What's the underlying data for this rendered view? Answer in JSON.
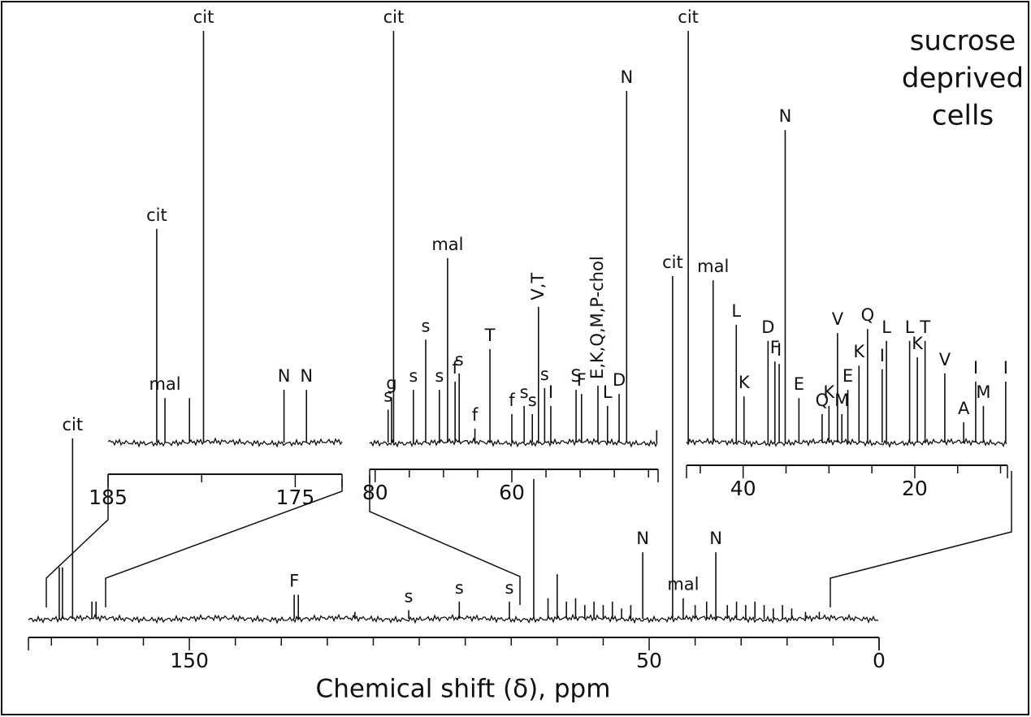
{
  "title_lines": [
    "sucrose",
    "deprived",
    "cells"
  ],
  "chart_data": [
    {
      "type": "spectrum",
      "xlabel": "Chemical shift (δ), ppm",
      "xlim": [
        185,
        0
      ],
      "ylim": [
        0,
        100
      ],
      "xticks": [
        150,
        50,
        0
      ],
      "xminorticks": [
        180,
        170,
        160,
        140,
        130,
        120,
        110,
        100,
        90,
        80,
        70,
        60,
        40,
        30,
        20,
        10
      ],
      "x": [
        178.3,
        177.6,
        175.4,
        171.2,
        170.3,
        127.2,
        126.3,
        114,
        102.3,
        91.3,
        80.4,
        75.1,
        72,
        70,
        68,
        66,
        64,
        62,
        60,
        58,
        56,
        54,
        51.4,
        44.9,
        42.6,
        40,
        37.5,
        35.5,
        33,
        31,
        29,
        27,
        25,
        23,
        21,
        19,
        16,
        13
      ],
      "values": [
        15,
        15,
        52.6,
        5,
        5,
        7,
        7,
        2,
        2.5,
        5,
        5,
        40.8,
        6,
        13,
        5,
        6,
        4,
        5,
        4,
        5,
        3,
        4,
        19.4,
        100,
        6,
        4,
        5,
        19.4,
        4,
        5,
        4,
        5,
        4,
        3,
        4,
        3,
        2,
        2
      ],
      "labels": [
        null,
        null,
        "cit",
        null,
        null,
        "F",
        null,
        null,
        "s",
        "s",
        "s",
        null,
        null,
        null,
        null,
        null,
        null,
        null,
        null,
        null,
        null,
        null,
        "N",
        "cit",
        "mal",
        null,
        null,
        "N",
        null,
        null,
        null,
        null,
        null,
        null,
        null,
        null,
        null,
        null
      ],
      "color": "#111111"
    },
    {
      "type": "spectrum",
      "xlim": [
        185,
        172.5
      ],
      "ylim": [
        0,
        100
      ],
      "xticks": [
        185,
        175
      ],
      "xminorticks": [
        180
      ],
      "x": [
        182.4,
        181.96,
        180.65,
        179.9,
        175.6,
        174.4
      ],
      "values": [
        51.9,
        10.8,
        10.8,
        100,
        12.8,
        12.8
      ],
      "labels": [
        "cit",
        "mal",
        null,
        "cit",
        "N",
        "N"
      ],
      "color": "#111111"
    },
    {
      "type": "spectrum",
      "xlim": [
        80.8,
        38.6
      ],
      "ylim": [
        0,
        100
      ],
      "xticks": [
        80,
        60
      ],
      "xminorticks": [
        75,
        70,
        65,
        55,
        50,
        45,
        40
      ],
      "x": [
        78.1,
        77.6,
        77.3,
        74.4,
        72.6,
        70.6,
        69.4,
        68.3,
        67.7,
        65.4,
        63.2,
        60,
        58.2,
        57.0,
        56.1,
        55.2,
        54.3,
        50.6,
        49.8,
        47.4,
        46.0,
        44.3,
        43.2,
        38.8
      ],
      "values": [
        8,
        11,
        100,
        12.8,
        25,
        12.8,
        44.8,
        14.8,
        16.8,
        3.4,
        22.7,
        6.9,
        8.9,
        6.9,
        33,
        13.2,
        8.9,
        12.8,
        11.8,
        13.8,
        8.9,
        11.8,
        85.4,
        3
      ],
      "labels": [
        "s",
        "g",
        "cit",
        "s",
        "s",
        "s",
        "mal",
        "f",
        "s",
        "f",
        "T",
        "f",
        "s",
        "s",
        "V,T",
        "s",
        "I",
        "S",
        "F",
        "E,K,Q,M,P-chol",
        "L",
        "D",
        "N",
        null
      ],
      "color": "#111111"
    },
    {
      "type": "spectrum",
      "xlim": [
        46.6,
        9.2
      ],
      "ylim": [
        0,
        100
      ],
      "xticks": [
        40,
        20
      ],
      "xminorticks": [
        45,
        35,
        30,
        25,
        15,
        10
      ],
      "x": [
        46.4,
        43.5,
        40.8,
        39.9,
        37.1,
        36.3,
        35.8,
        35.1,
        33.5,
        30.8,
        30,
        29,
        28.5,
        27.8,
        26.5,
        25.5,
        23.8,
        23.3,
        20.6,
        19.7,
        18.8,
        16.5,
        14.3,
        12.9,
        12,
        9.4
      ],
      "values": [
        100,
        39.4,
        28.6,
        11.2,
        24.7,
        19.7,
        19.1,
        75.9,
        10.8,
        6.9,
        8.9,
        26.6,
        6.9,
        12.8,
        18.7,
        27.6,
        17.8,
        24.7,
        24.7,
        20.7,
        24.7,
        16.8,
        4.9,
        14.8,
        8.9,
        14.8
      ],
      "labels": [
        "cit",
        "mal",
        "L",
        "K",
        "D",
        "F",
        "I",
        "N",
        "E",
        "Q",
        "K",
        "V",
        "M",
        "E",
        "K",
        "Q",
        "I",
        "L",
        "L",
        "K",
        "T",
        "V",
        "A",
        "I",
        "M",
        "I"
      ],
      "color": "#111111"
    }
  ]
}
